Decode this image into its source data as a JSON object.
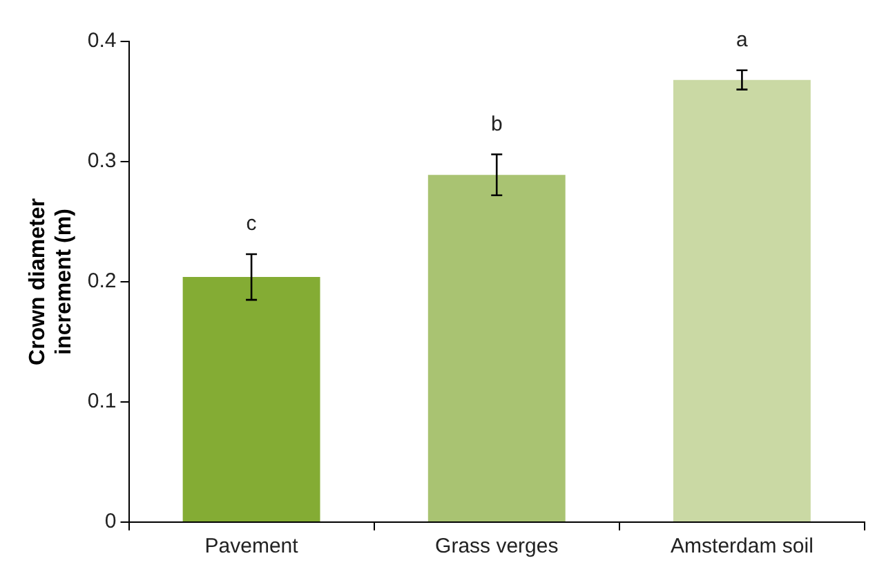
{
  "chart_data": {
    "type": "bar",
    "ylabel": "Crown diameter\nincrement (m)",
    "categories": [
      "Pavement",
      "Grass verges",
      "Amsterdam soil"
    ],
    "values": [
      0.204,
      0.289,
      0.368
    ],
    "colors": [
      "#84ac34",
      "#a9c372",
      "#cad9a4"
    ],
    "errors": [
      0.019,
      0.017,
      0.008
    ],
    "ylim": [
      0,
      0.4
    ],
    "yticks": [
      0,
      0.1,
      0.2,
      0.3,
      0.4
    ],
    "grid": false,
    "legend": false,
    "annotations": [
      "c",
      "b",
      "a"
    ]
  }
}
